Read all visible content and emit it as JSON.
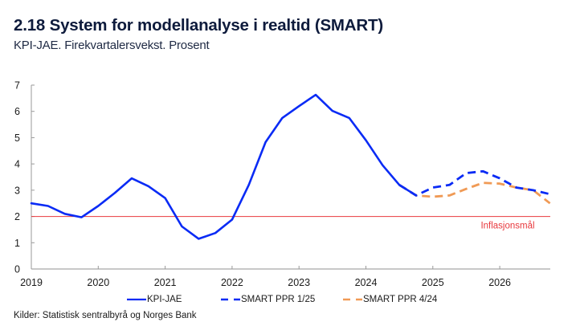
{
  "header": {
    "title": "2.18 System for modellanalyse i realtid (SMART)",
    "subtitle": "KPI-JAE. Firekvartalersvekst. Prosent"
  },
  "footer": {
    "source": "Kilder: Statistisk sentralbyrå og Norges Bank"
  },
  "colors": {
    "kpi_jae": "#0a2bf5",
    "smart_ppr_1_25": "#0a2bf5",
    "smart_ppr_4_24": "#f09a55",
    "target_line": "#e8383d",
    "axis": "#c8c8c8"
  },
  "chart_data": {
    "type": "line",
    "title": "2.18 System for modellanalyse i realtid (SMART)",
    "subtitle": "KPI-JAE. Firekvartalersvekst. Prosent",
    "xlabel": "",
    "ylabel": "",
    "xlim": [
      2019.0,
      2026.75
    ],
    "ylim": [
      0,
      7
    ],
    "yticks": [
      0,
      1,
      2,
      3,
      4,
      5,
      6,
      7
    ],
    "xticks": [
      2019,
      2020,
      2021,
      2022,
      2023,
      2024,
      2025,
      2026
    ],
    "xtick_labels": [
      "2019",
      "2020",
      "2021",
      "2022",
      "2023",
      "2024",
      "2025",
      "2026"
    ],
    "grid": false,
    "legend_position": "bottom",
    "series": [
      {
        "name": "KPI-JAE",
        "style": "solid",
        "x": [
          2019.0,
          2019.25,
          2019.5,
          2019.75,
          2020.0,
          2020.25,
          2020.5,
          2020.75,
          2021.0,
          2021.25,
          2021.5,
          2021.75,
          2022.0,
          2022.25,
          2022.5,
          2022.75,
          2023.0,
          2023.25,
          2023.5,
          2023.75,
          2024.0,
          2024.25,
          2024.5,
          2024.75
        ],
        "values": [
          2.5,
          2.4,
          2.1,
          1.97,
          2.4,
          2.9,
          3.45,
          3.15,
          2.7,
          1.62,
          1.15,
          1.37,
          1.88,
          3.2,
          4.83,
          5.75,
          6.2,
          6.63,
          6.02,
          5.75,
          4.9,
          3.95,
          3.2,
          2.8
        ]
      },
      {
        "name": "SMART PPR 1/25",
        "style": "dashed",
        "x": [
          2024.5,
          2024.75,
          2025.0,
          2025.25,
          2025.5,
          2025.75,
          2026.0,
          2026.25,
          2026.5,
          2026.75
        ],
        "values": [
          3.2,
          2.8,
          3.1,
          3.2,
          3.65,
          3.72,
          3.45,
          3.1,
          3.0,
          2.85
        ]
      },
      {
        "name": "SMART PPR 4/24",
        "style": "dashed",
        "x": [
          2024.5,
          2024.75,
          2025.0,
          2025.25,
          2025.5,
          2025.75,
          2026.0,
          2026.25,
          2026.5,
          2026.75
        ],
        "values": [
          3.2,
          2.8,
          2.75,
          2.8,
          3.05,
          3.28,
          3.25,
          3.1,
          3.0,
          2.5
        ]
      }
    ],
    "reference_lines": [
      {
        "label": "Inflasjonsmål",
        "y": 2
      }
    ]
  }
}
